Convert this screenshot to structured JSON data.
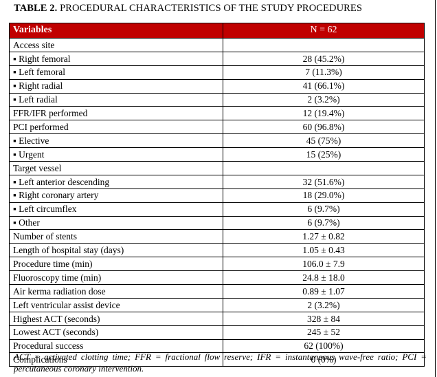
{
  "title": {
    "prefix": "TABLE 2.",
    "rest": " PROCEDURAL CHARACTERISTICS OF THE STUDY PROCEDURES"
  },
  "table": {
    "columns": [
      "Variables",
      "N = 62"
    ],
    "rows": [
      {
        "label": "Access site",
        "value": ""
      },
      {
        "label": "▪ Right femoral",
        "value": "28 (45.2%)"
      },
      {
        "label": "▪ Left femoral",
        "value": "7 (11.3%)"
      },
      {
        "label": "▪ Right radial",
        "value": "41 (66.1%)"
      },
      {
        "label": "▪ Left radial",
        "value": "2 (3.2%)"
      },
      {
        "label": "FFR/IFR performed",
        "value": "12 (19.4%)"
      },
      {
        "label": "PCI performed",
        "value": "60 (96.8%)"
      },
      {
        "label": "▪ Elective",
        "value": "45 (75%)"
      },
      {
        "label": "▪ Urgent",
        "value": "15 (25%)"
      },
      {
        "label": "Target vessel",
        "value": ""
      },
      {
        "label": "▪ Left anterior descending",
        "value": "32 (51.6%)"
      },
      {
        "label": "▪ Right coronary artery",
        "value": "18 (29.0%)"
      },
      {
        "label": "▪ Left circumflex",
        "value": "6 (9.7%)"
      },
      {
        "label": "▪ Other",
        "value": "6 (9.7%)"
      },
      {
        "label": "Number of stents",
        "value": "1.27 ± 0.82"
      },
      {
        "label": "Length of hospital stay (days)",
        "value": "1.05 ± 0.43"
      },
      {
        "label": "Procedure time (min)",
        "value": "106.0 ± 7.9"
      },
      {
        "label": "Fluoroscopy time (min)",
        "value": "24.8 ± 18.0"
      },
      {
        "label": "Air kerma radiation dose",
        "value": "0.89 ± 1.07"
      },
      {
        "label": "Left ventricular assist device",
        "value": "2 (3.2%)"
      },
      {
        "label": "Highest ACT (seconds)",
        "value": "328 ± 84"
      },
      {
        "label": "Lowest ACT (seconds)",
        "value": "245 ± 52"
      },
      {
        "label": "Procedural success",
        "value": "62 (100%)"
      },
      {
        "label": "Complications",
        "value": "0 (0%)"
      }
    ]
  },
  "footnote": "ACT = activated clotting time; FFR = fractional flow reserve; IFR = instantaneous wave-free ratio; PCI = percutaneous coronary intervention.",
  "colors": {
    "header_bg": "#C00000",
    "header_text": "#FFFFFF",
    "border": "#000000"
  }
}
